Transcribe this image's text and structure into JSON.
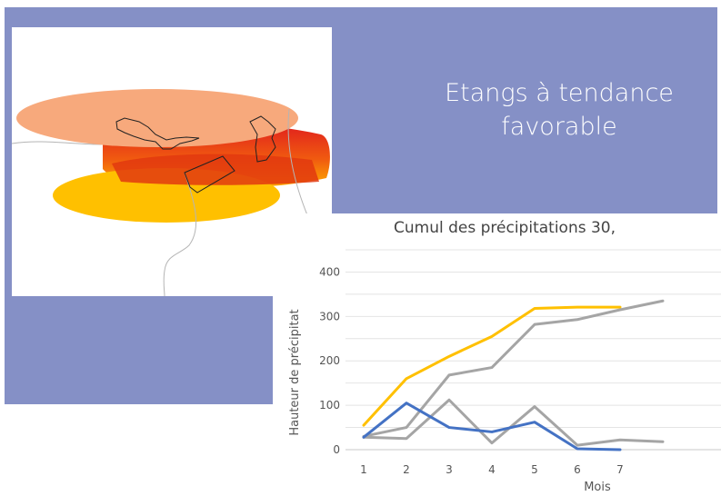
{
  "slide": {
    "title_line1": "Etangs à tendance",
    "title_line2": "favorable",
    "background_color": "#8590c6",
    "map_colors": [
      "#f5a97a",
      "#cc1b1b",
      "#ffc000"
    ]
  },
  "chart_data": {
    "type": "line",
    "title": "Cumul des précipitations 30,",
    "xlabel": "Mois",
    "ylabel": "Hauteur de précipitat",
    "x": [
      1,
      2,
      3,
      4,
      5,
      6,
      7,
      8
    ],
    "xticks": [
      1,
      2,
      3,
      4,
      5,
      6,
      7
    ],
    "yticks": [
      0,
      100,
      200,
      300,
      400
    ],
    "ylim": [
      0,
      450
    ],
    "grid": true,
    "series": [
      {
        "color": "#ffc000",
        "values": [
          55,
          160,
          210,
          255,
          318,
          321,
          321,
          null
        ]
      },
      {
        "color": "#a5a5a5",
        "values": [
          30,
          50,
          168,
          185,
          282,
          293,
          315,
          335
        ]
      },
      {
        "color": "#a5a5a5",
        "values": [
          28,
          25,
          112,
          15,
          97,
          10,
          22,
          18
        ]
      },
      {
        "color": "#4472c4",
        "values": [
          28,
          105,
          50,
          40,
          62,
          2,
          0,
          null
        ]
      }
    ]
  }
}
